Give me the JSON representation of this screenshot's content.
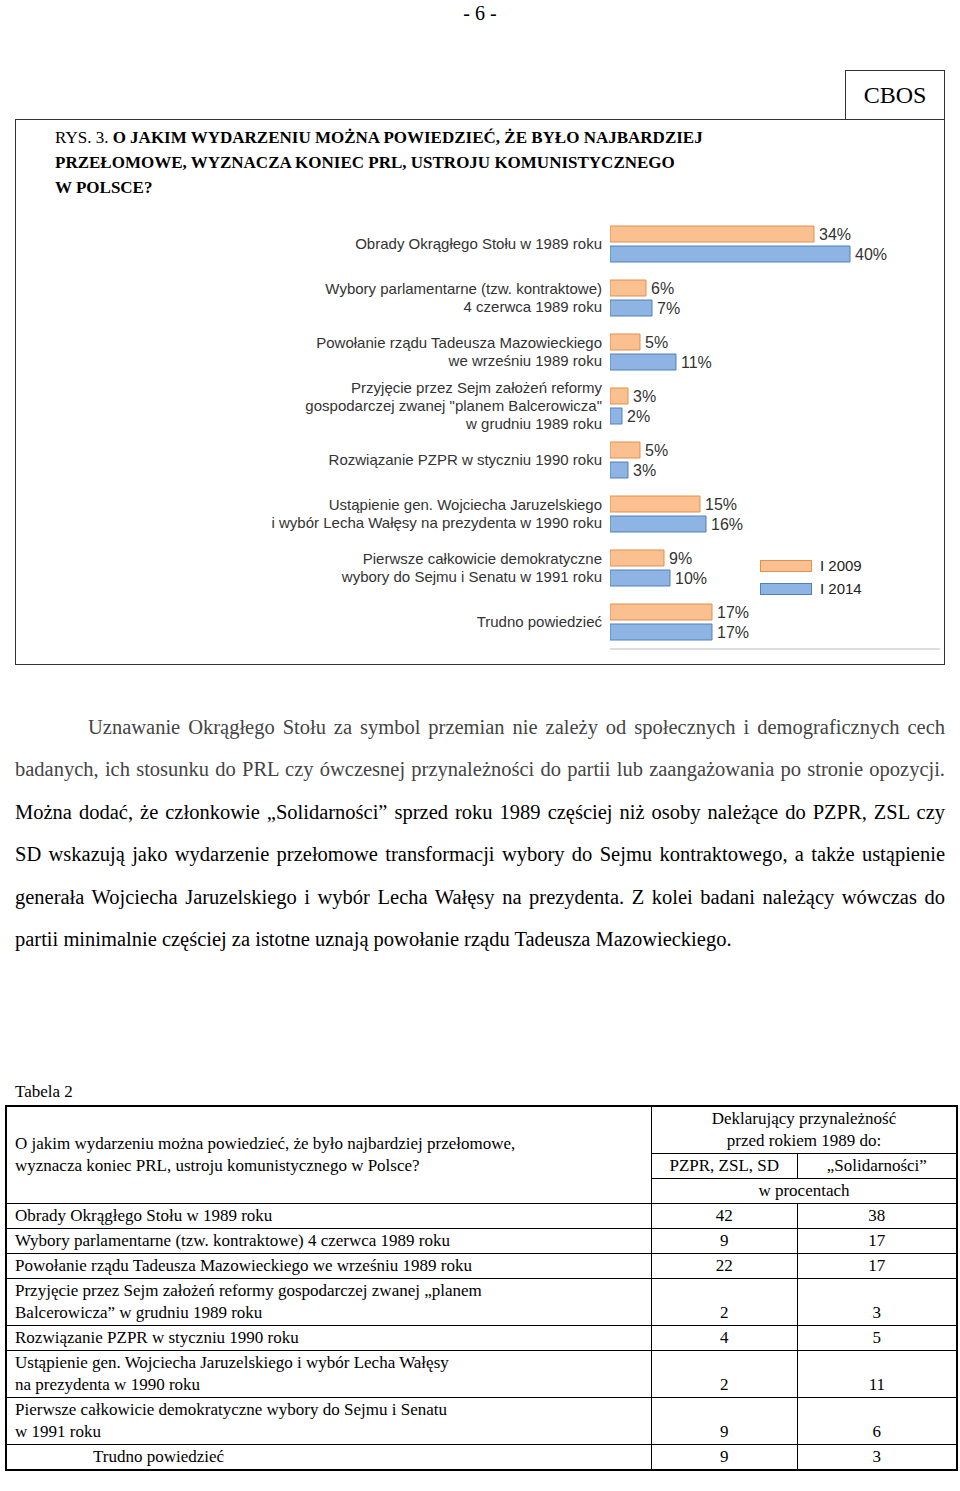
{
  "page_number": "- 6 -",
  "badge": "CBOS",
  "figure_label": "RYS. 3.",
  "chart_data": {
    "type": "bar",
    "orientation": "horizontal",
    "title": "O JAKIM WYDARZENIU MOŻNA POWIEDZIEĆ, ŻE BYŁO NAJBARDZIEJ\nPRZEŁOMOWE, WYZNACZA KONIEC PRL, USTROJU KOMUNISTYCZNEGO\nW POLSCE?",
    "categories": [
      "Obrady Okrągłego Stołu w 1989 roku",
      "Wybory parlamentarne (tzw. kontraktowe)\n4 czerwca 1989 roku",
      "Powołanie rządu Tadeusza Mazowieckiego\nwe wrześniu 1989 roku",
      "Przyjęcie przez Sejm założeń reformy\ngospodarczej zwanej \"planem Balcerowicza\"\nw grudniu 1989 roku",
      "Rozwiązanie PZPR w styczniu 1990 roku",
      "Ustąpienie gen. Wojciecha Jaruzelskiego\ni wybór Lecha Wałęsy na prezydenta w 1990 roku",
      "Pierwsze całkowicie demokratyczne\nwybory do Sejmu i Senatu w 1991 roku",
      "Trudno powiedzieć"
    ],
    "series": [
      {
        "name": "I 2009",
        "color": "#FAC08F",
        "values": [
          34,
          6,
          5,
          3,
          5,
          15,
          9,
          17
        ],
        "value_labels": [
          "34%",
          "6%",
          "5%",
          "3%",
          "5%",
          "15%",
          "9%",
          "17%"
        ]
      },
      {
        "name": "I 2014",
        "color": "#8DB4E2",
        "values": [
          40,
          7,
          11,
          2,
          3,
          16,
          10,
          17
        ],
        "value_labels": [
          "40%",
          "7%",
          "11%",
          "2%",
          "3%",
          "16%",
          "10%",
          "17%"
        ]
      }
    ],
    "xlim": [
      0,
      55
    ],
    "data_labels": true,
    "tick_labels": "y",
    "legend": "right"
  },
  "paragraph": [
    "Uznawanie Okrągłego Stołu za symbol przemian nie zależy od społecznych i demograficznych cech badanych, ich stosunku do PRL czy ówczesnej przynależności do partii lub zaangażowania po stronie opozycji.",
    "Można dodać, że członkowie „Solidarności” sprzed roku 1989 częściej niż osoby należące do PZPR, ZSL czy SD wskazują jako wydarzenie przełomowe transformacji wybory do Sejmu kontraktowego, a także ustąpienie generała Wojciecha Jaruzelskiego i wybór Lecha Wałęsy na prezydenta. Z kolei badani należący wówczas do partii minimalnie częściej za istotne uznają powołanie rządu Tadeusza Mazowieckiego."
  ],
  "table": {
    "caption": "Tabela 2",
    "header": {
      "question": "O jakim wydarzeniu można powiedzieć, że było najbardziej przełomowe,\nwyznacza koniec PRL, ustroju komunistycznego w Polsce?",
      "group": "Deklarujący przynależność\nprzed rokiem 1989 do:",
      "columns": [
        "PZPR, ZSL, SD",
        "„Solidarności”"
      ],
      "unit": "w procentach"
    },
    "rows": [
      [
        "Obrady Okrągłego Stołu w 1989 roku",
        42,
        38
      ],
      [
        "Wybory parlamentarne (tzw. kontraktowe) 4 czerwca 1989 roku",
        9,
        17
      ],
      [
        "Powołanie rządu Tadeusza Mazowieckiego we wrześniu 1989 roku",
        22,
        17
      ],
      [
        "Przyjęcie przez Sejm założeń reformy gospodarczej zwanej „planem\nBalcerowicza” w grudniu 1989 roku",
        2,
        3
      ],
      [
        "Rozwiązanie PZPR w styczniu 1990 roku",
        4,
        5
      ],
      [
        "Ustąpienie gen. Wojciecha Jaruzelskiego i wybór Lecha Wałęsy\nna prezydenta w 1990 roku",
        2,
        11
      ],
      [
        "Pierwsze całkowicie demokratyczne wybory do Sejmu i Senatu\nw 1991 roku",
        9,
        6
      ],
      [
        "Trudno powiedzieć",
        9,
        3
      ]
    ]
  }
}
